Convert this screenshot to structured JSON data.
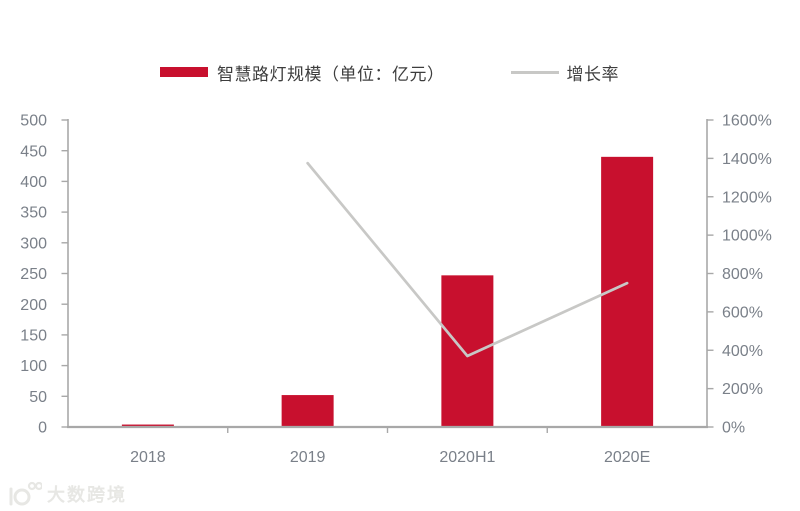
{
  "watermark": {
    "text": "大数跨境"
  },
  "chart_data": {
    "type": "combo_bar_line",
    "title": "",
    "categories": [
      "2018",
      "2019",
      "2020H1",
      "2020E"
    ],
    "series": [
      {
        "name": "智慧路灯规模（单位：亿元）",
        "type": "bar",
        "axis": "left",
        "color": "#C8102E",
        "values": [
          4,
          52,
          247,
          440
        ]
      },
      {
        "name": "增长率",
        "type": "line",
        "axis": "right",
        "color": "#C8C8C6",
        "values": [
          null,
          1375,
          370,
          750
        ]
      }
    ],
    "left_axis": {
      "min": 0,
      "max": 500,
      "step": 50,
      "tick_labels": [
        "0",
        "50",
        "100",
        "150",
        "200",
        "250",
        "300",
        "350",
        "400",
        "450",
        "500"
      ]
    },
    "right_axis": {
      "min": 0,
      "max": 1600,
      "step": 200,
      "tick_labels": [
        "0%",
        "200%",
        "400%",
        "600%",
        "800%",
        "1000%",
        "1200%",
        "1400%",
        "1600%"
      ]
    },
    "legend_position": "top",
    "grid": false,
    "style": {
      "axis_color": "#A8A8A8",
      "tick_label_color": "#7A8089",
      "legend_text_color": "#3D3D3D",
      "background": "#FFFFFF"
    }
  }
}
